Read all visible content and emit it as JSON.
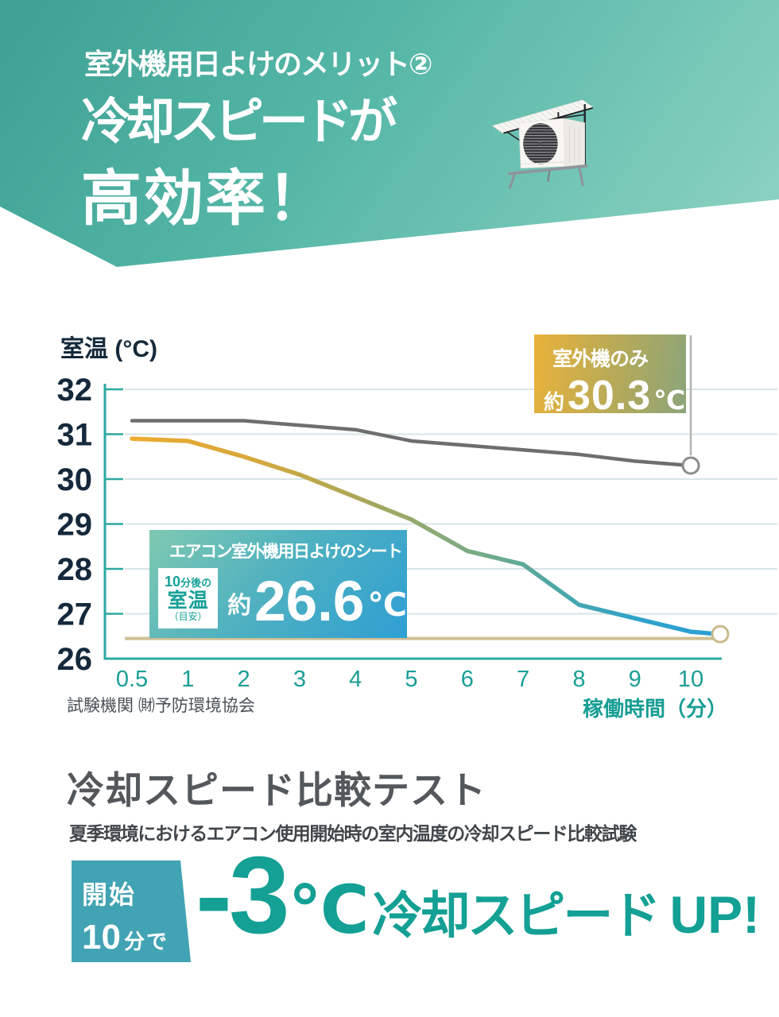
{
  "header": {
    "subtitle": "室外機用日よけのメリット②",
    "title_line1": "冷却スピードが",
    "title_line2": "高効率！",
    "bg_gradient": [
      "#3ea093",
      "#8fd3c3"
    ],
    "photo": "outdoor-ac-unit-with-sunshade"
  },
  "chart_data": {
    "type": "line",
    "ylabel": "室温 (°C)",
    "xlabel": "稼働時間（分）",
    "categories": [
      "0.5",
      "1",
      "2",
      "3",
      "4",
      "5",
      "6",
      "7",
      "8",
      "9",
      "10"
    ],
    "yticks": [
      32,
      31,
      30,
      29,
      28,
      27,
      26
    ],
    "ylim": [
      26,
      32
    ],
    "grid": true,
    "series": [
      {
        "name": "室外機のみ",
        "color": "#6e6e6e",
        "values": [
          31.3,
          31.3,
          31.3,
          31.2,
          31.1,
          30.85,
          30.75,
          30.65,
          30.55,
          30.4,
          30.3
        ]
      },
      {
        "name": "エアコン室外機用日よけのシート",
        "color_gradient": [
          "#edab2f",
          "#a3a75d",
          "#7bab84",
          "#4fa8a6",
          "#2b9fd8"
        ],
        "values": [
          30.9,
          30.85,
          30.5,
          30.1,
          29.6,
          29.1,
          28.4,
          28.1,
          27.2,
          26.9,
          26.6
        ]
      }
    ],
    "baseline": {
      "value": 26.45,
      "color": "#cfbf93"
    },
    "source": "試験機関 ㈶予防環境協会"
  },
  "callouts": {
    "outdoor_only": {
      "label": "室外機のみ",
      "approx": "約",
      "value": "30.3",
      "unit": "℃"
    },
    "shade": {
      "label": "エアコン室外機用日よけのシート",
      "card_top_num": "10",
      "card_top_text": "分後の",
      "card_main": "室温",
      "card_note": "（目安）",
      "approx": "約",
      "value": "26.6",
      "unit": "℃"
    }
  },
  "bottom": {
    "heading": "冷却スピード比較テスト",
    "description": "夏季環境におけるエアコン使用開始時の室内温度の冷却スピード比較試験",
    "badge_line1": "開始",
    "badge_num": "10",
    "badge_suffix": "分で",
    "result_value": "-3",
    "result_unit": "℃",
    "result_text": "冷却スピード",
    "result_suffix": "UP!"
  },
  "colors": {
    "accent_teal": "#14a094",
    "axis_teal": "#2ba9a1",
    "badge_teal": "#41a3b3",
    "gold_box": [
      "#e9b23a",
      "#8ba47a"
    ],
    "blue_box": [
      "#7fc9b1",
      "#2f9fd3"
    ]
  }
}
